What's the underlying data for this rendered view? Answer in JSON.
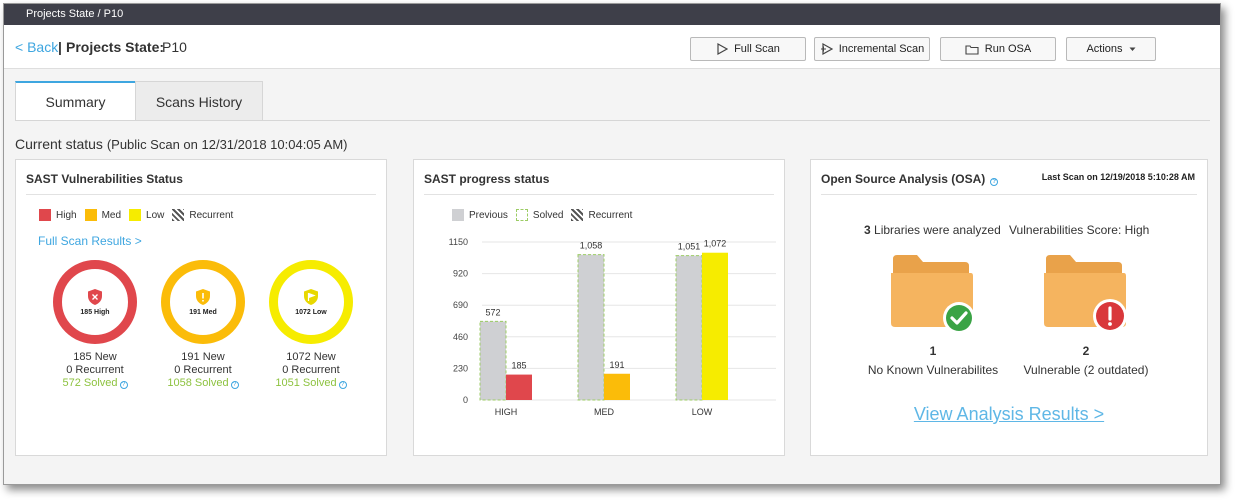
{
  "topbar": {
    "breadcrumb": "Projects State / P10"
  },
  "header": {
    "back_label": "< Back",
    "separator": "|",
    "title_label": "Projects State:",
    "project_name": "P10",
    "buttons": {
      "full_scan": "Full Scan",
      "incremental_scan": "Incremental Scan",
      "run_osa": "Run OSA",
      "actions": "Actions"
    }
  },
  "tabs": [
    "Summary",
    "Scans History"
  ],
  "current_status": {
    "label": "Current status",
    "detail": "(Public Scan on 12/31/2018 10:04:05 AM)"
  },
  "sast": {
    "title": "SAST Vulnerabilities Status",
    "legend": [
      "High",
      "Med",
      "Low",
      "Recurrent"
    ],
    "full_scan_link": "Full Scan Results >",
    "rings": [
      {
        "label": "185 High",
        "new": "185 New",
        "recurrent": "0 Recurrent",
        "solved": "572 Solved",
        "color": "#e0474c",
        "icon": "shield-x-icon"
      },
      {
        "label": "191 Med",
        "new": "191 New",
        "recurrent": "0 Recurrent",
        "solved": "1058 Solved",
        "color": "#fbbc09",
        "icon": "shield-exclamation-icon"
      },
      {
        "label": "1072 Low",
        "new": "1072 New",
        "recurrent": "0 Recurrent",
        "solved": "1051 Solved",
        "color": "#f6ec00",
        "icon": "shield-flag-icon"
      }
    ]
  },
  "progress": {
    "title": "SAST progress status",
    "legend": [
      "Previous",
      "Solved",
      "Recurrent"
    ]
  },
  "chart_data": {
    "type": "bar",
    "categories": [
      "HIGH",
      "MED",
      "LOW"
    ],
    "yticks": [
      0,
      230,
      460,
      690,
      920,
      1150
    ],
    "ylim": [
      0,
      1150
    ],
    "series": [
      {
        "name": "Previous",
        "values": [
          572,
          1058,
          1051
        ],
        "labels": [
          "572",
          "1,058",
          "1,051"
        ]
      },
      {
        "name": "New",
        "values": [
          185,
          191,
          1072
        ],
        "labels": [
          "185",
          "191",
          "1,072"
        ],
        "colors": [
          "#e0474c",
          "#fbbc09",
          "#f6ec00"
        ]
      }
    ],
    "colors": {
      "previous": "#cfd0d3",
      "solved_border": "#9ccc65"
    }
  },
  "osa": {
    "title": "Open Source Analysis (OSA)",
    "last_scan": "Last Scan on 12/19/2018 5:10:28 AM",
    "libraries_count": "3",
    "libraries_text": "Libraries were analyzed",
    "score_text": "Vulnerabilities Score: High",
    "groups": [
      {
        "count": "1",
        "label": "No Known Vulnerabilites",
        "status_icon": "check-icon",
        "status_color": "#3aa345"
      },
      {
        "count": "2",
        "label": "Vulnerable (2 outdated)",
        "status_icon": "exclamation-icon",
        "status_color": "#d9373b"
      }
    ],
    "link": "View Analysis Results >"
  }
}
